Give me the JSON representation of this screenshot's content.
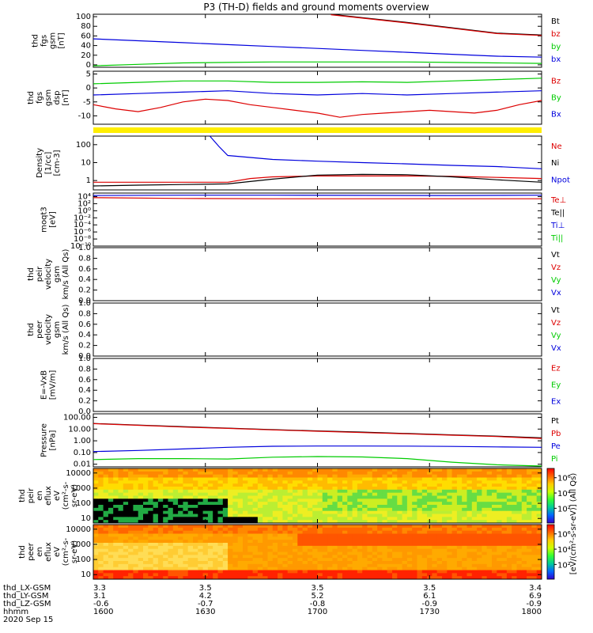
{
  "title": "P3 (TH-D) fields and ground moments overview",
  "chart_data": [
    {
      "type": "line",
      "ylabel_lines": [
        "thd",
        "fgs",
        "gsm",
        "[nT]"
      ],
      "ylim": [
        -5,
        105
      ],
      "yticks": [
        {
          "v": 100,
          "t": "100"
        },
        {
          "v": 80,
          "t": "80"
        },
        {
          "v": 60,
          "t": "60"
        },
        {
          "v": 40,
          "t": "40"
        },
        {
          "v": 20,
          "t": "20"
        },
        {
          "v": 0,
          "t": "0"
        }
      ],
      "legend": [
        {
          "name": "Bt",
          "color": "#000000"
        },
        {
          "name": "bz",
          "color": "#dd0000"
        },
        {
          "name": "by",
          "color": "#00cc00"
        },
        {
          "name": "bx",
          "color": "#0000dd"
        }
      ],
      "series": [
        {
          "name": "Bt",
          "color": "#000000",
          "x": [
            0.53,
            0.6,
            0.7,
            0.8,
            0.9,
            1.0
          ],
          "y": [
            105,
            98,
            88,
            77,
            66,
            62
          ]
        },
        {
          "name": "bz",
          "color": "#dd0000",
          "x": [
            0.53,
            0.6,
            0.7,
            0.8,
            0.9,
            1.0
          ],
          "y": [
            104,
            97,
            87,
            76,
            65,
            61
          ]
        },
        {
          "name": "by",
          "color": "#00cc00",
          "x": [
            0,
            0.1,
            0.2,
            0.3,
            0.4,
            0.5,
            0.6,
            0.7,
            0.8,
            0.9,
            1.0
          ],
          "y": [
            -2,
            1,
            4,
            5,
            6,
            6,
            6,
            6,
            5,
            4,
            3
          ]
        },
        {
          "name": "bx",
          "color": "#0000dd",
          "x": [
            0,
            0.1,
            0.2,
            0.3,
            0.4,
            0.5,
            0.6,
            0.7,
            0.8,
            0.9,
            1.0
          ],
          "y": [
            54,
            50,
            46,
            42,
            38,
            34,
            30,
            26,
            22,
            18,
            16
          ]
        }
      ]
    },
    {
      "type": "line",
      "ylabel_lines": [
        "thd",
        "fgs",
        "gsm",
        "dsp"
      ],
      "ylabel_unit": "[nT]",
      "ylim": [
        -13,
        6
      ],
      "yticks": [
        {
          "v": 5,
          "t": "5"
        },
        {
          "v": 0,
          "t": "0"
        },
        {
          "v": -5,
          "t": "-5"
        },
        {
          "v": -10,
          "t": "-10"
        }
      ],
      "legend": [
        {
          "name": "Bz",
          "color": "#dd0000"
        },
        {
          "name": "By",
          "color": "#00cc00"
        },
        {
          "name": "Bx",
          "color": "#0000dd"
        }
      ],
      "series": [
        {
          "name": "Bz",
          "color": "#dd0000",
          "x": [
            0,
            0.05,
            0.1,
            0.15,
            0.2,
            0.25,
            0.3,
            0.35,
            0.4,
            0.45,
            0.5,
            0.55,
            0.6,
            0.65,
            0.7,
            0.75,
            0.8,
            0.85,
            0.9,
            0.95,
            1.0
          ],
          "y": [
            -6,
            -7.5,
            -8.5,
            -7,
            -5,
            -4,
            -4.5,
            -6,
            -7,
            -8,
            -9,
            -10.5,
            -9.5,
            -9,
            -8.5,
            -8,
            -8.5,
            -9,
            -8,
            -6,
            -4.5
          ]
        },
        {
          "name": "By",
          "color": "#00cc00",
          "x": [
            0,
            0.1,
            0.2,
            0.3,
            0.4,
            0.5,
            0.6,
            0.7,
            0.8,
            0.9,
            1.0
          ],
          "y": [
            1.5,
            2,
            2.5,
            2.5,
            2,
            2,
            2.2,
            2,
            2.5,
            3,
            3.5
          ]
        },
        {
          "name": "Bx",
          "color": "#0000dd",
          "x": [
            0,
            0.1,
            0.2,
            0.3,
            0.4,
            0.5,
            0.6,
            0.7,
            0.8,
            0.9,
            1.0
          ],
          "y": [
            -2.5,
            -2,
            -1.5,
            -1,
            -2,
            -2.5,
            -2,
            -2.5,
            -2,
            -1.5,
            -1
          ]
        }
      ]
    },
    {
      "type": "line",
      "ylog": true,
      "ylabel_lines": [
        "Density",
        "[1/cc]",
        "[cm-3]"
      ],
      "ylim": [
        0.3,
        300
      ],
      "yticks": [
        {
          "v": 100,
          "t": "100"
        },
        {
          "v": 10,
          "t": "10"
        },
        {
          "v": 1,
          "t": "1"
        }
      ],
      "legend": [
        {
          "name": "Ne",
          "color": "#dd0000"
        },
        {
          "name": "Ni",
          "color": "#000000"
        },
        {
          "name": "Npot",
          "color": "#0000dd"
        }
      ],
      "series": [
        {
          "name": "Npot",
          "color": "#0000dd",
          "x": [
            0.26,
            0.28,
            0.3,
            0.4,
            0.5,
            0.6,
            0.7,
            0.8,
            0.9,
            1.0
          ],
          "y": [
            300,
            80,
            25,
            15,
            12,
            10,
            8.5,
            7,
            6,
            4.5
          ]
        },
        {
          "name": "Ne",
          "color": "#dd0000",
          "x": [
            0,
            0.1,
            0.2,
            0.3,
            0.35,
            0.4,
            0.5,
            0.6,
            0.7,
            0.8,
            0.9,
            1.0
          ],
          "y": [
            0.8,
            0.8,
            0.8,
            0.8,
            1.3,
            1.6,
            1.8,
            1.8,
            1.8,
            1.7,
            1.5,
            1.3
          ]
        },
        {
          "name": "Ni",
          "color": "#000000",
          "x": [
            0,
            0.1,
            0.2,
            0.3,
            0.4,
            0.5,
            0.6,
            0.7,
            0.8,
            0.9,
            1.0
          ],
          "y": [
            0.5,
            0.55,
            0.6,
            0.65,
            1.2,
            2,
            2.2,
            2.1,
            1.6,
            1.1,
            0.8
          ]
        }
      ]
    },
    {
      "type": "line",
      "ylog": true,
      "ylabel_lines": [
        "moqt3",
        "[eV]"
      ],
      "ylim": [
        1e-10,
        100000.0
      ],
      "yticks": [
        {
          "v": 10000,
          "t": "10⁴"
        },
        {
          "v": 100,
          "t": "10²"
        },
        {
          "v": 1,
          "t": "10⁰"
        },
        {
          "v": 0.01,
          "t": "10⁻²"
        },
        {
          "v": 0.0001,
          "t": "10⁻⁴"
        },
        {
          "v": 1e-06,
          "t": "10⁻⁶"
        },
        {
          "v": 1e-08,
          "t": "10⁻⁸"
        },
        {
          "v": 1e-10,
          "t": "10⁻¹⁰"
        }
      ],
      "legend": [
        {
          "name": "Te⊥",
          "color": "#dd0000"
        },
        {
          "name": "Te||",
          "color": "#000000"
        },
        {
          "name": "Ti⊥",
          "color": "#0000dd"
        },
        {
          "name": "Ti||",
          "color": "#00cc00"
        }
      ],
      "series": [
        {
          "name": "Ti",
          "color": "#0000dd",
          "x": [
            0,
            0.2,
            0.4,
            0.6,
            0.8,
            1.0
          ],
          "y": [
            20000,
            25000,
            25000,
            22000,
            20000,
            25000
          ]
        },
        {
          "name": "Te",
          "color": "#dd0000",
          "x": [
            0,
            0.2,
            0.4,
            0.6,
            0.8,
            1.0
          ],
          "y": [
            5000,
            3000,
            2500,
            2500,
            2500,
            2500
          ]
        }
      ]
    },
    {
      "type": "line",
      "ylabel_lines": [
        "thd",
        "peir",
        "velocity",
        "gsm",
        "km/s (All Qs)"
      ],
      "ylim": [
        0,
        1
      ],
      "yticks": [
        {
          "v": 1,
          "t": "1.0"
        },
        {
          "v": 0.8,
          "t": "0.8"
        },
        {
          "v": 0.6,
          "t": "0.6"
        },
        {
          "v": 0.4,
          "t": "0.4"
        },
        {
          "v": 0.2,
          "t": "0.2"
        },
        {
          "v": 0,
          "t": "0.0"
        }
      ],
      "legend": [
        {
          "name": "Vt",
          "color": "#000000"
        },
        {
          "name": "Vz",
          "color": "#dd0000"
        },
        {
          "name": "Vy",
          "color": "#00cc00"
        },
        {
          "name": "Vx",
          "color": "#0000dd"
        }
      ],
      "series": []
    },
    {
      "type": "line",
      "ylabel_lines": [
        "thd",
        "peer",
        "velocity",
        "gsm",
        "km/s (All Qs)"
      ],
      "ylim": [
        0,
        1
      ],
      "yticks": [
        {
          "v": 1,
          "t": "1.0"
        },
        {
          "v": 0.8,
          "t": "0.8"
        },
        {
          "v": 0.6,
          "t": "0.6"
        },
        {
          "v": 0.4,
          "t": "0.4"
        },
        {
          "v": 0.2,
          "t": "0.2"
        },
        {
          "v": 0,
          "t": "0.0"
        }
      ],
      "legend": [
        {
          "name": "Vt",
          "color": "#000000"
        },
        {
          "name": "Vz",
          "color": "#dd0000"
        },
        {
          "name": "Vy",
          "color": "#00cc00"
        },
        {
          "name": "Vx",
          "color": "#0000dd"
        }
      ],
      "series": []
    },
    {
      "type": "line",
      "ylabel_lines": [
        "E=-VxB",
        "[mV/m]"
      ],
      "ylim": [
        0,
        1
      ],
      "yticks": [
        {
          "v": 1,
          "t": "1.0"
        },
        {
          "v": 0.8,
          "t": "0.8"
        },
        {
          "v": 0.6,
          "t": "0.6"
        },
        {
          "v": 0.4,
          "t": "0.4"
        },
        {
          "v": 0.2,
          "t": "0.2"
        },
        {
          "v": 0,
          "t": "0.0"
        }
      ],
      "legend": [
        {
          "name": "Ez",
          "color": "#dd0000"
        },
        {
          "name": "Ey",
          "color": "#00cc00"
        },
        {
          "name": "Ex",
          "color": "#0000dd"
        }
      ],
      "series": []
    },
    {
      "type": "line",
      "ylog": true,
      "ylabel_lines": [
        "Pressure",
        "[nPa]"
      ],
      "ylim": [
        0.006,
        200
      ],
      "yticks": [
        {
          "v": 100,
          "t": "100.00"
        },
        {
          "v": 10,
          "t": "10.00"
        },
        {
          "v": 1,
          "t": "1.00"
        },
        {
          "v": 0.1,
          "t": "0.10"
        },
        {
          "v": 0.01,
          "t": "0.01"
        }
      ],
      "legend": [
        {
          "name": "Pt",
          "color": "#000000"
        },
        {
          "name": "Pb",
          "color": "#dd0000"
        },
        {
          "name": "Pe",
          "color": "#0000dd"
        },
        {
          "name": "Pi",
          "color": "#00cc00"
        }
      ],
      "series": [
        {
          "name": "Pt",
          "color": "#000000",
          "x": [
            0,
            0.1,
            0.2,
            0.3,
            0.4,
            0.5,
            0.6,
            0.7,
            0.8,
            0.9,
            1.0
          ],
          "y": [
            30,
            22,
            16,
            12,
            9,
            7,
            5.5,
            4.2,
            3.2,
            2.5,
            1.8
          ]
        },
        {
          "name": "Pb",
          "color": "#dd0000",
          "x": [
            0,
            0.1,
            0.2,
            0.3,
            0.4,
            0.5,
            0.6,
            0.7,
            0.8,
            0.9,
            1.0
          ],
          "y": [
            29,
            21,
            15,
            11.5,
            8.5,
            6.5,
            5,
            3.9,
            3,
            2.3,
            1.6
          ]
        },
        {
          "name": "Pe",
          "color": "#0000dd",
          "x": [
            0,
            0.1,
            0.2,
            0.3,
            0.4,
            0.5,
            0.6,
            0.7,
            0.8,
            0.9,
            1.0
          ],
          "y": [
            0.12,
            0.15,
            0.2,
            0.28,
            0.34,
            0.36,
            0.36,
            0.35,
            0.33,
            0.3,
            0.28
          ]
        },
        {
          "name": "Pi",
          "color": "#00cc00",
          "x": [
            0,
            0.1,
            0.2,
            0.3,
            0.4,
            0.5,
            0.6,
            0.7,
            0.8,
            0.9,
            1.0
          ],
          "y": [
            0.025,
            0.03,
            0.03,
            0.028,
            0.04,
            0.045,
            0.042,
            0.03,
            0.015,
            0.009,
            0.007
          ]
        }
      ]
    },
    {
      "type": "heatmap",
      "ylog": true,
      "ylabel_lines": [
        "thd",
        "peir",
        "en",
        "eflux",
        "eV",
        "(cm²-s-",
        "sr-eV)"
      ],
      "ylim": [
        5,
        20000
      ],
      "yticks": [
        {
          "v": 10000,
          "t": "10000"
        },
        {
          "v": 1000,
          "t": "1000"
        },
        {
          "v": 100,
          "t": "100"
        },
        {
          "v": 10,
          "t": "10"
        }
      ],
      "colorbar": {
        "ticks": [
          {
            "v": 0.83,
            "t": "10⁶"
          },
          {
            "v": 0.55,
            "t": "10⁴"
          },
          {
            "v": 0.27,
            "t": "10²"
          }
        ]
      }
    },
    {
      "type": "heatmap",
      "ylog": true,
      "ylabel_lines": [
        "thd",
        "peer",
        "en",
        "eflux",
        "eV",
        "(cm²-s-",
        "sr-eV)"
      ],
      "ylim": [
        5,
        20000
      ],
      "yticks": [
        {
          "v": 10000,
          "t": "10000"
        },
        {
          "v": 1000,
          "t": "1000"
        },
        {
          "v": 100,
          "t": "100"
        },
        {
          "v": 10,
          "t": "10"
        }
      ],
      "colorbar": {
        "ticks": [
          {
            "v": 0.83,
            "t": "10⁶"
          },
          {
            "v": 0.55,
            "t": "10⁴"
          },
          {
            "v": 0.27,
            "t": "10²"
          }
        ]
      }
    }
  ],
  "colorbar_label": "[eV/(cm²-s-sr-eV)] (All Qs)",
  "x_axis": {
    "rows": [
      {
        "label": "thd_LX-GSM",
        "values": [
          "3.3",
          "3.5",
          "3.5",
          "3.5",
          "3.4"
        ]
      },
      {
        "label": "thd_LY-GSM",
        "values": [
          "3.1",
          "4.2",
          "5.2",
          "6.1",
          "6.9"
        ]
      },
      {
        "label": "thd_LZ-GSM",
        "values": [
          "-0.6",
          "-0.7",
          "-0.8",
          "-0.9",
          "-0.9"
        ]
      },
      {
        "label": "hhmm",
        "values": [
          "1600",
          "1630",
          "1700",
          "1730",
          "1800"
        ]
      }
    ],
    "date": "2020 Sep 15"
  }
}
